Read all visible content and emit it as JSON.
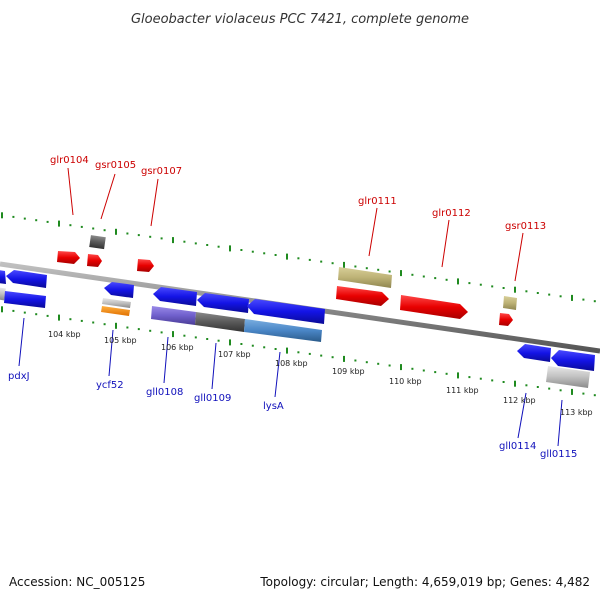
{
  "title": "Gloeobacter violaceus PCC 7421, complete genome",
  "footer": {
    "accession": "Accession: NC_005125",
    "topology": "Topology: circular; Length: 4,659,019 bp; Genes: 4,482"
  },
  "colors": {
    "forward_gene": "#e80000",
    "reverse_gene": "#1414e6",
    "backbone": "#8a8a8a",
    "tick_green": "#1f8a1f",
    "label_red": "#cc0000",
    "label_blue": "#1010bb"
  },
  "kbp_labels": [
    "104 kbp",
    "105 kbp",
    "106 kbp",
    "107 kbp",
    "108 kbp",
    "109 kbp",
    "110 kbp",
    "111 kbp",
    "112 kbp",
    "113 kbp"
  ],
  "top_genes": [
    "glr0104",
    "gsr0105",
    "gsr0107",
    "glr0111",
    "glr0112",
    "gsr0113"
  ],
  "bottom_genes": [
    "pdxJ",
    "ycf52",
    "gll0108",
    "gll0109",
    "lysA",
    "gll0114",
    "gll0115"
  ]
}
